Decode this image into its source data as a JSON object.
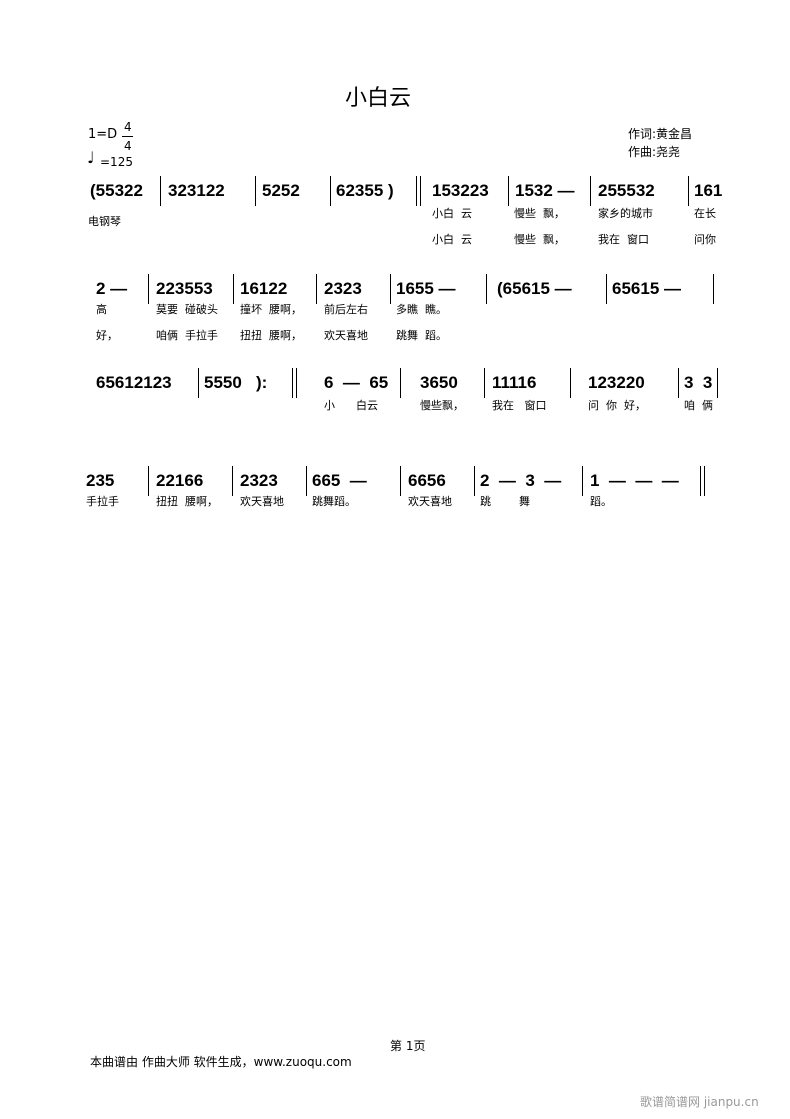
{
  "title": "小白云",
  "key": "1=D",
  "time_top": "4",
  "time_bottom": "4",
  "tempo": "=125",
  "credits": [
    "作词:黄金昌",
    "作曲:尧尧"
  ],
  "instrument": "电钢琴",
  "rows": [
    {
      "notes": [
        "(55322",
        "323122",
        "5252",
        "62355 )",
        "153223",
        "1532 —",
        "255532",
        "161"
      ],
      "lyrics": [
        [
          "小白  云",
          "慢些  飘，",
          "家乡的城市",
          "在长"
        ],
        [
          "小白  云",
          "慢些  飘，",
          "我在  窗口",
          "问你"
        ]
      ]
    },
    {
      "notes": [
        "2 —",
        "223553",
        "16122",
        "2323",
        "1655 —",
        "(65615 —",
        "65615 —"
      ],
      "lyrics": [
        [
          "高",
          "莫要  碰破头",
          "撞坏  腰啊，",
          "前后左右",
          "多瞧  瞧。"
        ],
        [
          "好，",
          "咱俩  手拉手",
          "扭扭  腰啊，",
          "欢天喜地",
          "跳舞  蹈。"
        ]
      ]
    },
    {
      "notes": [
        "65612123",
        "5550   ):",
        "6  —  65",
        "3650",
        "11116",
        "123220",
        "3  3"
      ],
      "lyrics": [
        [
          "小      白云",
          "慢些飘，",
          "我在   窗口",
          "问  你  好，",
          "咱  俩"
        ]
      ]
    },
    {
      "notes": [
        "235",
        "22166",
        "2323",
        "665  —",
        "6656",
        "2  —  3  —",
        "1  —  —  —"
      ],
      "lyrics": [
        [
          "手拉手",
          "扭扭  腰啊，",
          "欢天喜地",
          "跳舞蹈。",
          "欢天喜地",
          "跳        舞",
          "蹈。"
        ]
      ]
    }
  ],
  "footer": {
    "page": "第 1页",
    "note": "本曲谱由 作曲大师 软件生成，www.zuoqu.com",
    "watermark": "歌谱简谱网 jianpu.cn"
  }
}
